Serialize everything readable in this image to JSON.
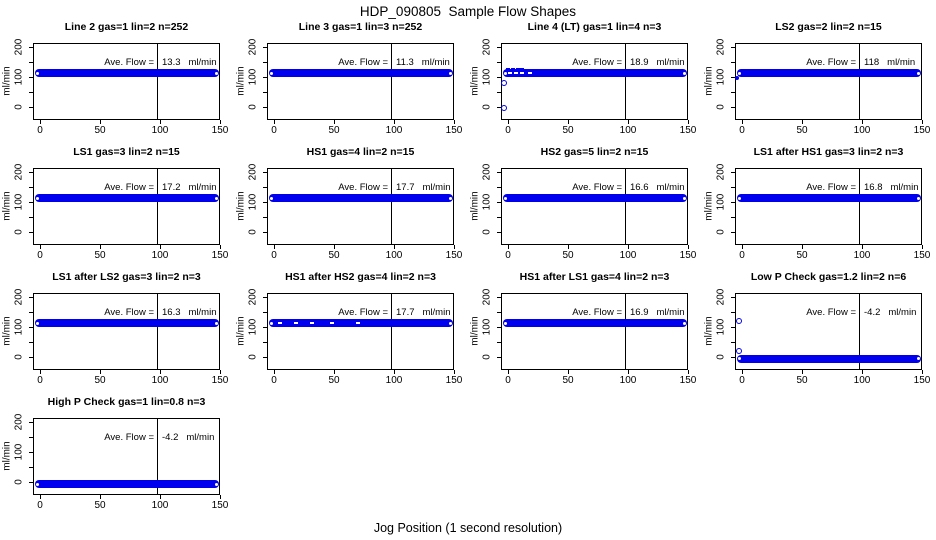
{
  "title": "HDP_090805  Sample Flow Shapes",
  "xlabel_global": "Jog Position (1 second resolution)",
  "colors": {
    "point_blue": "#0000EE",
    "axis_black": "#000000",
    "background": "#FFFFFF"
  },
  "annotation": {
    "label": "Ave. Flow ="
  },
  "axes": {
    "ylabel": "ml/min",
    "x_ticks": [
      0,
      50,
      100,
      150
    ],
    "y_ticks_all": [
      0,
      50,
      100,
      150,
      200
    ],
    "y_ticks_labeled": [
      0,
      100,
      200
    ],
    "xlim": [
      -6,
      155
    ],
    "ylim": [
      -40,
      220
    ],
    "vline_x": 100,
    "grid": false
  },
  "chart_data": [
    {
      "type": "scatter",
      "title": "Line 2 gas=1 lin=2 n=252",
      "ave_flow": "13.3",
      "unit": "ml/min",
      "band": {
        "y": 112,
        "x_start": -4,
        "x_end": 149
      },
      "marks": []
    },
    {
      "type": "scatter",
      "title": "Line 3 gas=1 lin=3 n=252",
      "ave_flow": "11.3",
      "unit": "ml/min",
      "band": {
        "y": 112,
        "x_start": -4,
        "x_end": 149
      },
      "marks": []
    },
    {
      "type": "scatter",
      "title": "Line 4 (LT) gas=1 lin=4 n=3",
      "ave_flow": "18.9",
      "unit": "ml/min",
      "band": {
        "y": 112,
        "x_start": -4,
        "x_end": 149
      },
      "marks": [
        {
          "x": -3,
          "y": 80,
          "kind": "circle"
        },
        {
          "x": -3,
          "y": -5,
          "kind": "circle"
        },
        {
          "x": 0,
          "y": 127,
          "kind": "dash"
        },
        {
          "x": 4,
          "y": 127,
          "kind": "dash"
        },
        {
          "x": 8,
          "y": 127,
          "kind": "dash"
        },
        {
          "x": 12,
          "y": 127,
          "kind": "dash"
        },
        {
          "x": 2,
          "y": 112,
          "kind": "white-dash"
        },
        {
          "x": 7,
          "y": 112,
          "kind": "white-dash"
        },
        {
          "x": 12,
          "y": 112,
          "kind": "white-dash"
        },
        {
          "x": 18,
          "y": 112,
          "kind": "white-dash"
        }
      ]
    },
    {
      "type": "scatter",
      "title": "LS2 gas=2 lin=2 n=15",
      "ave_flow": "118",
      "unit": "ml/min",
      "band": {
        "y": 112,
        "x_start": -4,
        "x_end": 149
      },
      "marks": [
        {
          "x": -4,
          "y": 97,
          "kind": "dot"
        }
      ]
    },
    {
      "type": "scatter",
      "title": "LS1 gas=3 lin=2 n=15",
      "ave_flow": "17.2",
      "unit": "ml/min",
      "band": {
        "y": 112,
        "x_start": -4,
        "x_end": 149
      },
      "marks": []
    },
    {
      "type": "scatter",
      "title": "HS1 gas=4 lin=2 n=15",
      "ave_flow": "17.7",
      "unit": "ml/min",
      "band": {
        "y": 112,
        "x_start": -4,
        "x_end": 149
      },
      "marks": []
    },
    {
      "type": "scatter",
      "title": "HS2 gas=5 lin=2 n=15",
      "ave_flow": "16.6",
      "unit": "ml/min",
      "band": {
        "y": 112,
        "x_start": -4,
        "x_end": 149
      },
      "marks": []
    },
    {
      "type": "scatter",
      "title": "LS1 after HS1 gas=3 lin=2 n=3",
      "ave_flow": "16.8",
      "unit": "ml/min",
      "band": {
        "y": 112,
        "x_start": -4,
        "x_end": 149
      },
      "marks": []
    },
    {
      "type": "scatter",
      "title": "LS1 after LS2 gas=3 lin=2 n=3",
      "ave_flow": "16.3",
      "unit": "ml/min",
      "band": {
        "y": 112,
        "x_start": -4,
        "x_end": 149
      },
      "marks": []
    },
    {
      "type": "scatter",
      "title": "HS1 after HS2 gas=4 lin=2 n=3",
      "ave_flow": "17.7",
      "unit": "ml/min",
      "band": {
        "y": 112,
        "x_start": -4,
        "x_end": 149
      },
      "marks": [
        {
          "x": 5,
          "y": 112,
          "kind": "white-dash"
        },
        {
          "x": 18,
          "y": 112,
          "kind": "white-dash"
        },
        {
          "x": 32,
          "y": 112,
          "kind": "white-dash"
        },
        {
          "x": 48,
          "y": 112,
          "kind": "white-dash"
        },
        {
          "x": 70,
          "y": 112,
          "kind": "white-dash"
        }
      ]
    },
    {
      "type": "scatter",
      "title": "HS1 after LS1 gas=4 lin=2 n=3",
      "ave_flow": "16.9",
      "unit": "ml/min",
      "band": {
        "y": 112,
        "x_start": -4,
        "x_end": 149
      },
      "marks": []
    },
    {
      "type": "scatter",
      "title": "Low P Check gas=1.2 lin=2 n=6",
      "ave_flow": "-4.2",
      "unit": "ml/min",
      "band": {
        "y": -6,
        "x_start": -4,
        "x_end": 149
      },
      "marks": [
        {
          "x": -2,
          "y": 118,
          "kind": "circle"
        },
        {
          "x": -2,
          "y": 20,
          "kind": "circle"
        }
      ]
    },
    {
      "type": "scatter",
      "title": "High P Check gas=1 lin=0.8 n=3",
      "ave_flow": "-4.2",
      "unit": "ml/min",
      "band": {
        "y": -7,
        "x_start": -4,
        "x_end": 149
      },
      "marks": []
    }
  ]
}
